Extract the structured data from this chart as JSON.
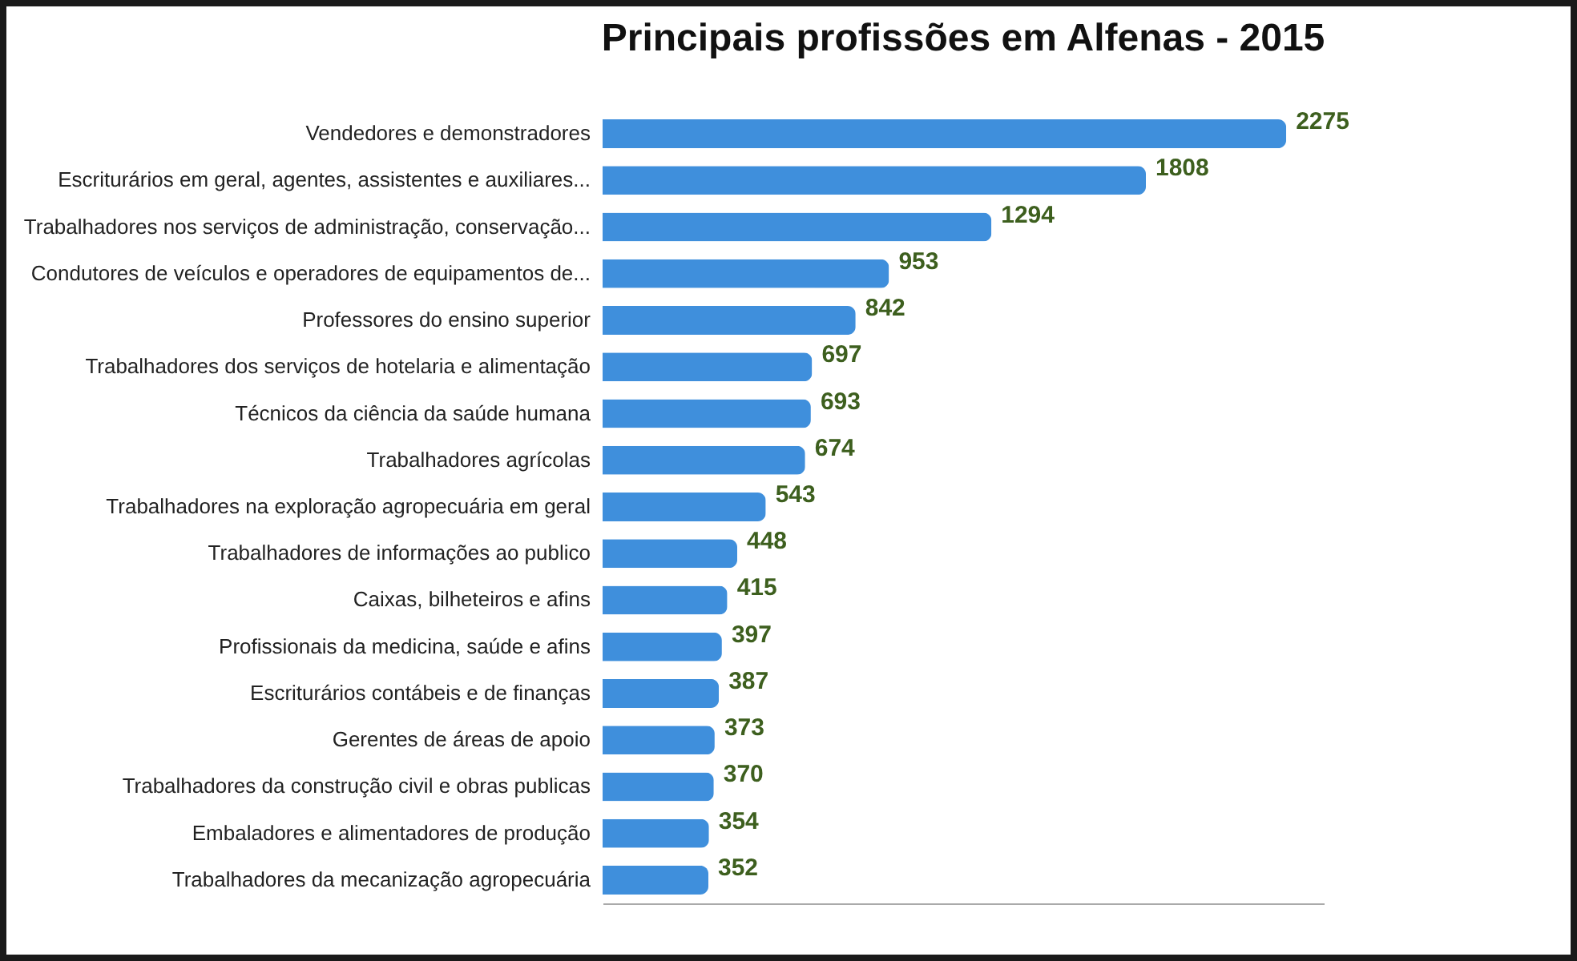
{
  "chart_data": {
    "type": "bar",
    "orientation": "horizontal",
    "title": "Principais profissões em Alfenas  - 2015",
    "categories": [
      "Vendedores e demonstradores",
      "Escriturários em geral, agentes, assistentes e auxiliares...",
      "Trabalhadores nos serviços de administração, conservação...",
      "Condutores de veículos e operadores de equipamentos de...",
      "Professores do ensino superior",
      "Trabalhadores dos serviços de hotelaria e alimentação",
      "Técnicos da ciência da saúde humana",
      "Trabalhadores agrícolas",
      "Trabalhadores na exploração agropecuária em geral",
      "Trabalhadores de informações ao publico",
      "Caixas, bilheteiros e afins",
      "Profissionais da medicina, saúde e afins",
      "Escriturários contábeis e de finanças",
      "Gerentes de áreas de apoio",
      "Trabalhadores da construção civil e obras publicas",
      "Embaladores e alimentadores de produção",
      "Trabalhadores da mecanização agropecuária"
    ],
    "values": [
      2275,
      1808,
      1294,
      953,
      842,
      697,
      693,
      674,
      543,
      448,
      415,
      397,
      387,
      373,
      370,
      354,
      352
    ],
    "color": "#3f8fdc",
    "data_labels": true
  }
}
